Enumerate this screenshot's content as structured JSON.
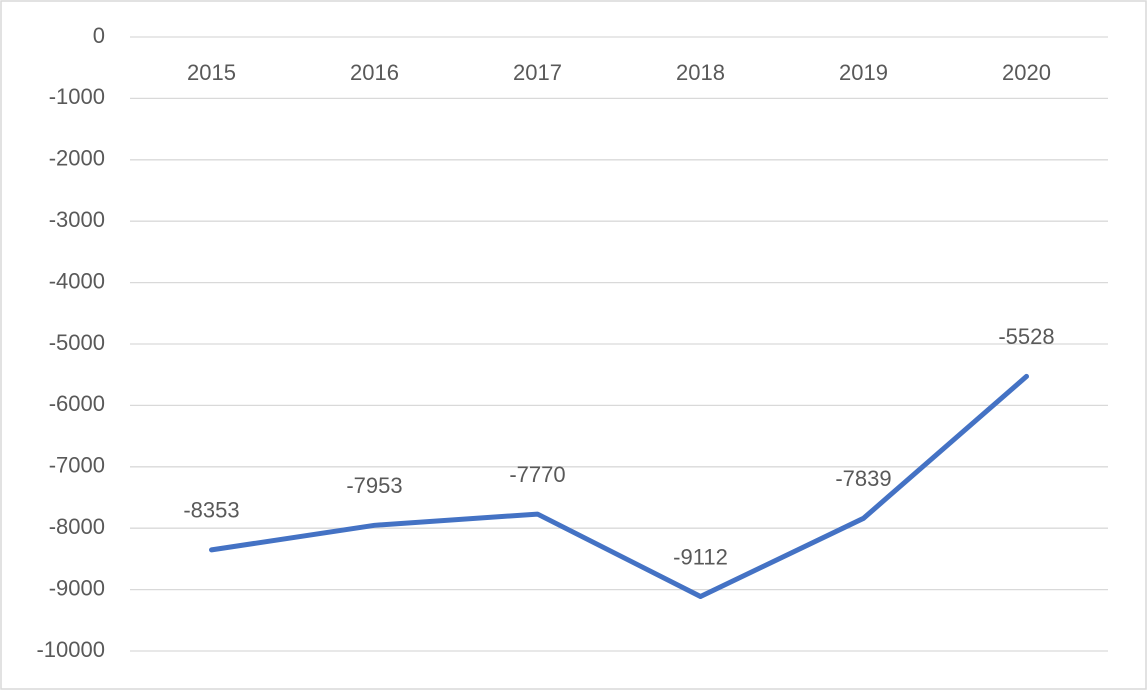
{
  "chart_data": {
    "type": "line",
    "categories": [
      "2015",
      "2016",
      "2017",
      "2018",
      "2019",
      "2020"
    ],
    "values": [
      -8353,
      -7953,
      -7770,
      -9112,
      -7839,
      -5528
    ],
    "color": "#4472c4",
    "ylim": [
      -10000,
      0
    ],
    "yticks": [
      0,
      -1000,
      -2000,
      -3000,
      -4000,
      -5000,
      -6000,
      -7000,
      -8000,
      -9000,
      -10000
    ],
    "grid": true
  }
}
